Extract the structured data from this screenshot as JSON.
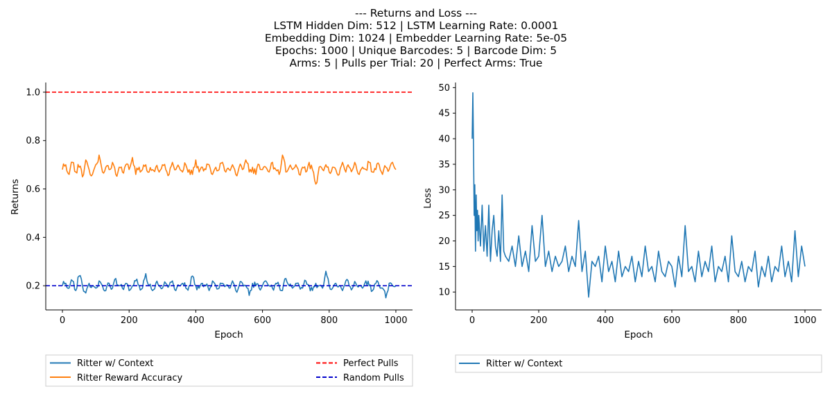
{
  "figure": {
    "title_lines": [
      "--- Returns and Loss ---",
      "LSTM Hidden Dim: 512 | LSTM Learning Rate: 0.0001",
      "Embedding Dim: 1024 | Embedder Learning Rate: 5e-05",
      "Epochs: 1000 | Unique Barcodes: 5 | Barcode Dim: 5",
      "Arms: 5 | Pulls per Trial: 20 | Perfect Arms: True"
    ]
  },
  "chart_data": [
    {
      "type": "line",
      "xlabel": "Epoch",
      "ylabel": "Returns",
      "xlim": [
        -50,
        1050
      ],
      "ylim": [
        0.1,
        1.04
      ],
      "xticks": [
        0,
        200,
        400,
        600,
        800,
        1000
      ],
      "xtick_labels": [
        "0",
        "200",
        "400",
        "600",
        "800",
        "1000"
      ],
      "yticks": [
        0.2,
        0.4,
        0.6,
        0.8,
        1.0
      ],
      "ytick_labels": [
        "0.2",
        "0.4",
        "0.6",
        "0.8",
        "1.0"
      ],
      "grid": false,
      "legend_position": "below-plot",
      "series": [
        {
          "name": "Ritter w/ Context",
          "color": "#1f77b4",
          "style": "solid",
          "x_range": [
            0,
            1000
          ],
          "summary": {
            "mean": 0.198,
            "min": 0.15,
            "max": 0.262
          },
          "values": [
            0.2,
            0.21,
            0.19,
            0.22,
            0.18,
            0.24,
            0.2,
            0.17,
            0.21,
            0.2,
            0.19,
            0.22,
            0.2,
            0.18,
            0.21,
            0.19,
            0.23,
            0.2,
            0.19,
            0.21,
            0.18,
            0.2,
            0.22,
            0.2,
            0.19,
            0.25,
            0.2,
            0.18,
            0.21,
            0.2,
            0.19,
            0.21,
            0.2,
            0.22,
            0.18,
            0.2,
            0.21,
            0.19,
            0.2,
            0.24,
            0.2,
            0.19,
            0.21,
            0.2,
            0.18,
            0.22,
            0.2,
            0.19,
            0.21,
            0.2,
            0.19,
            0.22,
            0.18,
            0.2,
            0.21,
            0.2,
            0.16,
            0.21,
            0.2,
            0.19,
            0.2,
            0.22,
            0.2,
            0.19,
            0.21,
            0.2,
            0.18,
            0.23,
            0.2,
            0.19,
            0.21,
            0.2,
            0.19,
            0.22,
            0.2,
            0.18,
            0.21,
            0.2,
            0.19,
            0.26,
            0.2,
            0.19,
            0.21,
            0.2,
            0.18,
            0.22,
            0.2,
            0.19,
            0.21,
            0.2,
            0.19,
            0.22,
            0.2,
            0.18,
            0.21,
            0.2,
            0.19,
            0.15,
            0.21,
            0.2,
            0.2
          ]
        },
        {
          "name": "Ritter Reward Accuracy",
          "color": "#ff7f0e",
          "style": "solid",
          "x_range": [
            0,
            1000
          ],
          "summary": {
            "mean": 0.68,
            "min": 0.62,
            "max": 0.75
          },
          "values": [
            0.68,
            0.7,
            0.66,
            0.71,
            0.67,
            0.69,
            0.65,
            0.72,
            0.68,
            0.66,
            0.7,
            0.74,
            0.67,
            0.69,
            0.68,
            0.71,
            0.66,
            0.69,
            0.67,
            0.7,
            0.68,
            0.73,
            0.66,
            0.69,
            0.68,
            0.7,
            0.67,
            0.68,
            0.69,
            0.67,
            0.7,
            0.68,
            0.66,
            0.71,
            0.68,
            0.69,
            0.67,
            0.7,
            0.68,
            0.66,
            0.72,
            0.67,
            0.69,
            0.68,
            0.7,
            0.66,
            0.69,
            0.68,
            0.71,
            0.67,
            0.68,
            0.7,
            0.66,
            0.69,
            0.68,
            0.72,
            0.67,
            0.69,
            0.66,
            0.7,
            0.68,
            0.69,
            0.67,
            0.71,
            0.68,
            0.66,
            0.74,
            0.67,
            0.69,
            0.68,
            0.7,
            0.66,
            0.69,
            0.67,
            0.71,
            0.68,
            0.62,
            0.69,
            0.68,
            0.7,
            0.67,
            0.69,
            0.68,
            0.66,
            0.71,
            0.67,
            0.69,
            0.68,
            0.7,
            0.66,
            0.69,
            0.68,
            0.71,
            0.67,
            0.68,
            0.7,
            0.66,
            0.69,
            0.68,
            0.71,
            0.68
          ]
        },
        {
          "name": "Perfect Pulls",
          "color": "#ff0000",
          "style": "dashed",
          "constant": 1.0
        },
        {
          "name": "Random Pulls",
          "color": "#0000cc",
          "style": "dashed",
          "constant": 0.2
        }
      ]
    },
    {
      "type": "line",
      "xlabel": "Epoch",
      "ylabel": "Loss",
      "xlim": [
        -50,
        1050
      ],
      "ylim": [
        6.5,
        51
      ],
      "xticks": [
        0,
        200,
        400,
        600,
        800,
        1000
      ],
      "xtick_labels": [
        "0",
        "200",
        "400",
        "600",
        "800",
        "1000"
      ],
      "yticks": [
        10,
        15,
        20,
        25,
        30,
        35,
        40,
        45,
        50
      ],
      "ytick_labels": [
        "10",
        "15",
        "20",
        "25",
        "30",
        "35",
        "40",
        "45",
        "50"
      ],
      "grid": false,
      "legend_position": "below-plot",
      "series": [
        {
          "name": "Ritter w/ Context",
          "color": "#1f77b4",
          "style": "solid",
          "x": [
            0,
            2,
            4,
            6,
            8,
            10,
            12,
            14,
            16,
            18,
            20,
            25,
            30,
            35,
            40,
            45,
            50,
            55,
            60,
            65,
            70,
            75,
            80,
            85,
            90,
            95,
            100,
            110,
            120,
            130,
            140,
            150,
            160,
            170,
            180,
            190,
            200,
            210,
            220,
            230,
            240,
            250,
            260,
            270,
            280,
            290,
            300,
            310,
            320,
            330,
            340,
            350,
            360,
            370,
            380,
            390,
            400,
            410,
            420,
            430,
            440,
            450,
            460,
            470,
            480,
            490,
            500,
            510,
            520,
            530,
            540,
            550,
            560,
            570,
            580,
            590,
            600,
            610,
            620,
            630,
            640,
            650,
            660,
            670,
            680,
            690,
            700,
            710,
            720,
            730,
            740,
            750,
            760,
            770,
            780,
            790,
            800,
            810,
            820,
            830,
            840,
            850,
            860,
            870,
            880,
            890,
            900,
            910,
            920,
            930,
            940,
            950,
            960,
            970,
            980,
            990,
            1000
          ],
          "values": [
            40,
            49,
            39,
            25,
            31,
            18,
            29,
            22,
            26,
            20,
            25,
            19,
            27,
            18,
            23,
            17,
            27,
            16,
            22,
            25,
            19,
            17,
            22,
            16,
            29,
            18,
            17,
            16,
            19,
            15,
            21,
            15,
            18,
            14,
            23,
            16,
            17,
            25,
            15,
            18,
            14,
            17,
            15,
            16,
            19,
            14,
            17,
            15,
            24,
            14,
            18,
            9,
            16,
            15,
            17,
            12,
            19,
            14,
            16,
            12,
            18,
            13,
            15,
            14,
            17,
            12,
            16,
            13,
            19,
            14,
            15,
            12,
            18,
            14,
            13,
            16,
            15,
            11,
            17,
            13,
            23,
            14,
            15,
            12,
            18,
            13,
            16,
            14,
            19,
            12,
            15,
            14,
            17,
            12,
            21,
            14,
            13,
            16,
            12,
            15,
            14,
            18,
            11,
            15,
            13,
            17,
            12,
            15,
            14,
            19,
            13,
            16,
            12,
            22,
            13,
            19,
            15
          ]
        }
      ]
    }
  ]
}
